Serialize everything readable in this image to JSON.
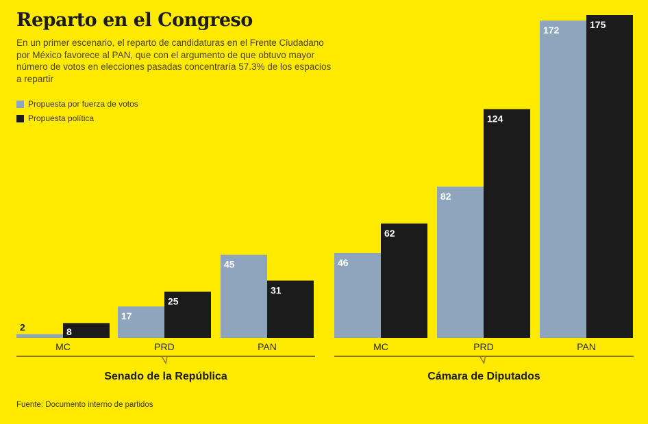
{
  "chart_data": [
    {
      "type": "bar",
      "title": "Reparto en el Congreso",
      "subtitle": "En un primer escenario, el reparto de candidaturas en el Frente Ciudadano por México favorece al PAN, que con el argumento de que obtuvo mayor número de votos en elecciones pasadas concentraría 57.3% de los espacios a repartir",
      "group_label": "Senado de la República",
      "categories": [
        "MC",
        "PRD",
        "PAN"
      ],
      "series": [
        {
          "name": "Propuesta por fuerza de votos",
          "values": [
            2,
            17,
            45
          ],
          "color": "#8ea5bd"
        },
        {
          "name": "Propuesta política",
          "values": [
            8,
            25,
            31
          ],
          "color": "#1b1b1b"
        }
      ],
      "ylim": [
        0,
        175
      ],
      "grid": false,
      "legend": "top-left"
    },
    {
      "type": "bar",
      "group_label": "Cámara de Diputados",
      "categories": [
        "MC",
        "PRD",
        "PAN"
      ],
      "series": [
        {
          "name": "Propuesta por fuerza de votos",
          "values": [
            46,
            82,
            172
          ],
          "color": "#8ea5bd"
        },
        {
          "name": "Propuesta política",
          "values": [
            62,
            124,
            175
          ],
          "color": "#1b1b1b"
        }
      ],
      "ylim": [
        0,
        175
      ],
      "grid": false
    }
  ],
  "source": "Fuente: Documento interno de partidos",
  "colors": {
    "background": "#ffea00",
    "bracket": "#8a7a10"
  }
}
